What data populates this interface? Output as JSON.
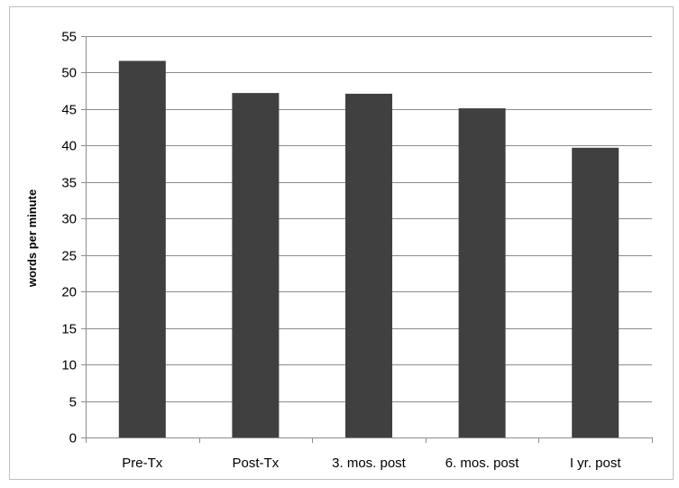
{
  "chart_data": {
    "type": "bar",
    "categories": [
      "Pre-Tx",
      "Post-Tx",
      "3. mos. post",
      "6. mos. post",
      "I yr. post"
    ],
    "values": [
      51.6,
      47.2,
      47.1,
      45.1,
      39.7
    ],
    "title": "",
    "xlabel": "",
    "ylabel": "words per minute",
    "ylim": [
      0,
      55
    ],
    "yticks": [
      0,
      5,
      10,
      15,
      20,
      25,
      30,
      35,
      40,
      45,
      50,
      55
    ],
    "grid": true,
    "legend": "none",
    "bar_color": "#404040"
  }
}
